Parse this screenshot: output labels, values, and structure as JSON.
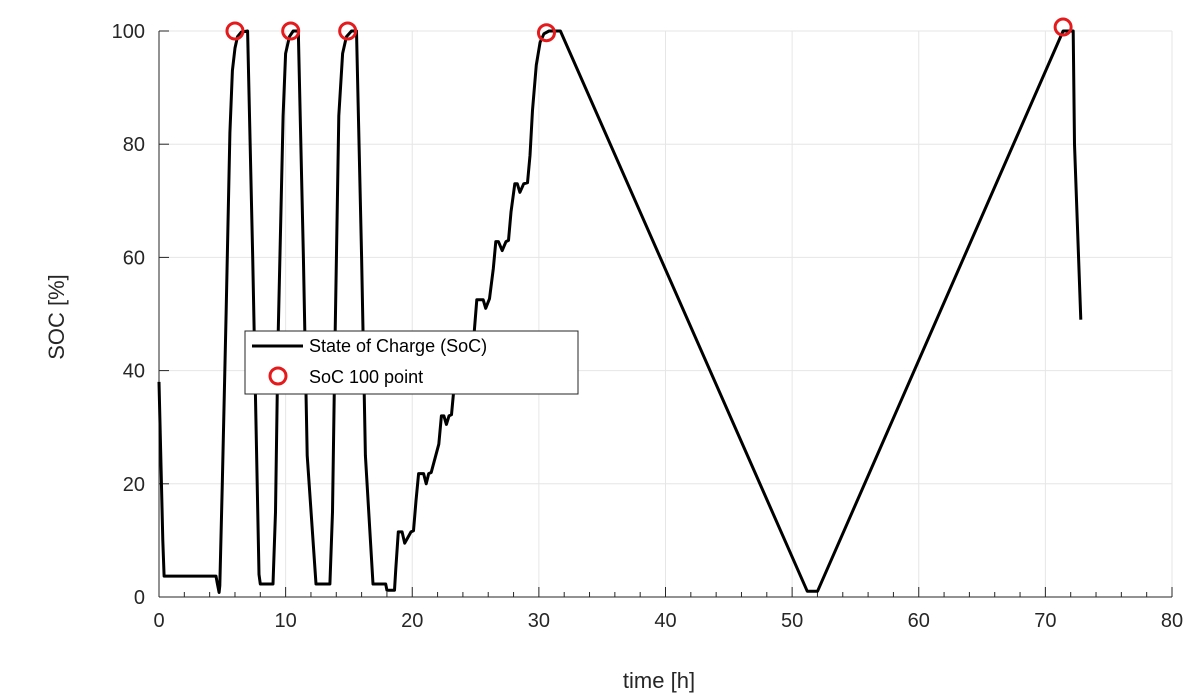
{
  "chart_data": {
    "type": "line",
    "title": "",
    "xlabel": "time [h]",
    "ylabel": "SOC [%]",
    "xlim": [
      0,
      80
    ],
    "ylim": [
      0,
      100
    ],
    "xticks": [
      0,
      10,
      20,
      30,
      40,
      50,
      60,
      70,
      80
    ],
    "yticks": [
      0,
      20,
      40,
      60,
      80,
      100
    ],
    "x_minor_step": 2,
    "grid": true,
    "legend_position": "center-left",
    "series": [
      {
        "name": "State of Charge (SoC)",
        "style": "line",
        "color": "#000000",
        "x": [
          0.0,
          0.3,
          0.4,
          4.5,
          4.6,
          4.75,
          4.8,
          5.0,
          5.3,
          5.6,
          5.8,
          6.0,
          6.2,
          6.5,
          7.0,
          7.4,
          7.9,
          8.0,
          9.0,
          9.2,
          9.4,
          9.8,
          10.0,
          10.3,
          10.6,
          11.0,
          11.4,
          11.7,
          12.4,
          12.5,
          13.5,
          13.7,
          13.9,
          14.2,
          14.5,
          14.8,
          15.2,
          15.6,
          16.0,
          16.3,
          16.9,
          17.0,
          17.9,
          18.0,
          18.6,
          18.7,
          18.9,
          19.0,
          19.2,
          19.4,
          19.9,
          20.1,
          20.3,
          20.5,
          20.9,
          21.1,
          21.3,
          21.5,
          22.1,
          22.3,
          22.5,
          22.7,
          22.9,
          23.1,
          23.3,
          23.5,
          23.9,
          24.1,
          24.5,
          24.9,
          25.1,
          25.3,
          25.6,
          25.8,
          26.1,
          26.4,
          26.6,
          26.8,
          27.1,
          27.4,
          27.6,
          27.8,
          28.1,
          28.3,
          28.5,
          28.8,
          29.1,
          29.3,
          29.5,
          29.8,
          30.1,
          30.4,
          30.8,
          31.2,
          31.7,
          51.2,
          52.0,
          71.4,
          71.7,
          72.2,
          72.3,
          72.8
        ],
        "y": [
          38.0,
          10.0,
          3.7,
          3.7,
          2.5,
          0.8,
          2.0,
          20.0,
          50.0,
          82.0,
          93.0,
          97.0,
          99.0,
          99.8,
          100.0,
          60.0,
          4.0,
          2.3,
          2.3,
          15.0,
          45.0,
          85.0,
          96.0,
          99.0,
          100.0,
          100.0,
          60.0,
          25.0,
          2.3,
          2.3,
          2.3,
          15.0,
          45.0,
          85.0,
          96.0,
          99.0,
          100.0,
          100.0,
          60.0,
          25.0,
          2.3,
          2.3,
          2.3,
          1.2,
          1.2,
          5.0,
          11.5,
          11.5,
          11.5,
          9.5,
          11.5,
          11.7,
          17.0,
          21.8,
          21.8,
          20.0,
          21.8,
          22.0,
          27.0,
          32.0,
          32.0,
          30.5,
          32.0,
          32.2,
          37.0,
          42.0,
          42.0,
          40.5,
          42.2,
          47.0,
          52.5,
          52.5,
          52.5,
          51.0,
          52.7,
          58.0,
          62.8,
          62.8,
          61.2,
          62.8,
          63.0,
          68.0,
          73.0,
          73.0,
          71.5,
          73.0,
          73.2,
          78.0,
          86.0,
          94.0,
          98.0,
          99.5,
          100.0,
          100.0,
          100.0,
          1.0,
          1.0,
          100.0,
          100.0,
          100.0,
          80.0,
          49.0
        ]
      },
      {
        "name": "SoC 100 point",
        "style": "marker-circle",
        "color": "#e41a1c",
        "x": [
          6.0,
          10.4,
          14.9,
          30.6,
          71.4
        ],
        "y": [
          100.0,
          100.0,
          100.0,
          99.7,
          100.7
        ]
      }
    ]
  }
}
